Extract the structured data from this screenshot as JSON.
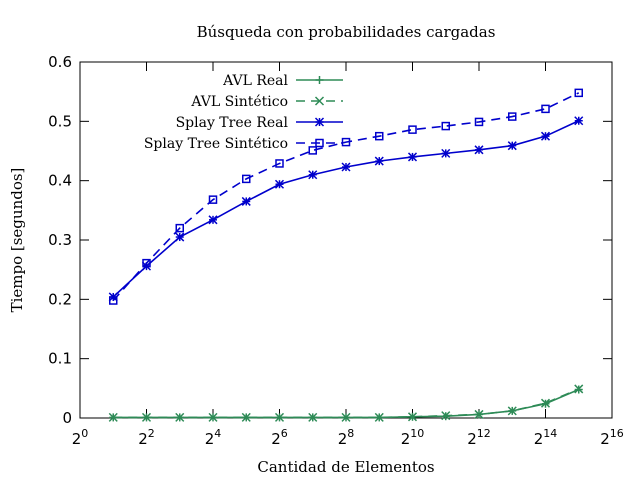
{
  "chart_data": {
    "type": "line",
    "title": "Búsqueda con probabilidades cargadas",
    "xlabel": "Cantidad de Elementos",
    "ylabel": "Tiempo [segundos]",
    "x_scale": "log2",
    "xlim": [
      1,
      65536
    ],
    "ylim": [
      0,
      0.6
    ],
    "x_ticks": [
      {
        "value": 1,
        "base": "2",
        "exp": "0"
      },
      {
        "value": 4,
        "base": "2",
        "exp": "2"
      },
      {
        "value": 16,
        "base": "2",
        "exp": "4"
      },
      {
        "value": 64,
        "base": "2",
        "exp": "6"
      },
      {
        "value": 256,
        "base": "2",
        "exp": "8"
      },
      {
        "value": 1024,
        "base": "2",
        "exp": "10"
      },
      {
        "value": 4096,
        "base": "2",
        "exp": "12"
      },
      {
        "value": 16384,
        "base": "2",
        "exp": "14"
      },
      {
        "value": 65536,
        "base": "2",
        "exp": "16"
      }
    ],
    "y_ticks": [
      {
        "value": 0,
        "label": "0"
      },
      {
        "value": 0.1,
        "label": "0.1"
      },
      {
        "value": 0.2,
        "label": "0.2"
      },
      {
        "value": 0.3,
        "label": "0.3"
      },
      {
        "value": 0.4,
        "label": "0.4"
      },
      {
        "value": 0.5,
        "label": "0.5"
      },
      {
        "value": 0.6,
        "label": "0.6"
      }
    ],
    "grid": false,
    "legend_position": "top-left",
    "x": [
      2,
      4,
      8,
      16,
      32,
      64,
      128,
      256,
      512,
      1024,
      2048,
      4096,
      8192,
      16384,
      32768
    ],
    "series": [
      {
        "name": "AVL Real",
        "color": "#2e8b57",
        "dash": "solid",
        "marker": "plus",
        "values": [
          0.001,
          0.001,
          0.001,
          0.001,
          0.001,
          0.001,
          0.001,
          0.001,
          0.001,
          0.002,
          0.003,
          0.006,
          0.012,
          0.024,
          0.048
        ]
      },
      {
        "name": "AVL Sintético",
        "color": "#2e8b57",
        "dash": "dashed",
        "marker": "cross",
        "values": [
          0.001,
          0.001,
          0.001,
          0.001,
          0.001,
          0.001,
          0.001,
          0.001,
          0.001,
          0.002,
          0.004,
          0.006,
          0.012,
          0.025,
          0.049
        ]
      },
      {
        "name": "Splay Tree Real",
        "color": "#0000cc",
        "dash": "solid",
        "marker": "star",
        "values": [
          0.204,
          0.256,
          0.305,
          0.334,
          0.365,
          0.394,
          0.41,
          0.423,
          0.433,
          0.44,
          0.446,
          0.452,
          0.459,
          0.475,
          0.501
        ]
      },
      {
        "name": "Splay Tree Sintético",
        "color": "#0000cc",
        "dash": "dashed",
        "marker": "square",
        "values": [
          0.198,
          0.261,
          0.32,
          0.368,
          0.403,
          0.429,
          0.451,
          0.465,
          0.475,
          0.486,
          0.492,
          0.499,
          0.508,
          0.521,
          0.548
        ]
      }
    ]
  }
}
